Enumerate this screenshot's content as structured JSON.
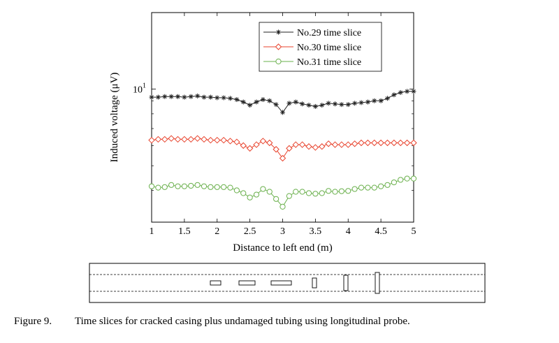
{
  "chart_data": {
    "type": "line",
    "xlabel": "Distance to left end (m)",
    "ylabel": "Induced voltage (μV)",
    "yscale": "log",
    "xlim": [
      1,
      5
    ],
    "ylim": [
      3,
      20
    ],
    "xticks": [
      "1",
      "1.5",
      "2",
      "2.5",
      "3",
      "3.5",
      "4",
      "4.5",
      "5"
    ],
    "yticks": [
      {
        "value": 10,
        "label_base": "10",
        "label_exp": "1"
      }
    ],
    "legend_position": "top-right",
    "x": [
      1.0,
      1.1,
      1.2,
      1.3,
      1.4,
      1.5,
      1.6,
      1.7,
      1.8,
      1.9,
      2.0,
      2.1,
      2.2,
      2.3,
      2.4,
      2.5,
      2.6,
      2.7,
      2.8,
      2.9,
      3.0,
      3.1,
      3.2,
      3.3,
      3.4,
      3.5,
      3.6,
      3.7,
      3.8,
      3.9,
      4.0,
      4.1,
      4.2,
      4.3,
      4.4,
      4.5,
      4.6,
      4.7,
      4.8,
      4.9,
      5.0
    ],
    "series": [
      {
        "name": "No.29 time slice",
        "color": "#222222",
        "marker": "star",
        "values": [
          9.3,
          9.3,
          9.35,
          9.35,
          9.35,
          9.3,
          9.35,
          9.4,
          9.3,
          9.3,
          9.25,
          9.25,
          9.2,
          9.1,
          8.9,
          8.65,
          8.9,
          9.1,
          9.0,
          8.7,
          8.1,
          8.8,
          8.9,
          8.75,
          8.65,
          8.55,
          8.65,
          8.8,
          8.75,
          8.7,
          8.7,
          8.8,
          8.85,
          8.9,
          9.0,
          9.0,
          9.2,
          9.5,
          9.7,
          9.8,
          9.8
        ]
      },
      {
        "name": "No.30 time slice",
        "color": "#e8432d",
        "marker": "diamond",
        "values": [
          6.3,
          6.35,
          6.35,
          6.4,
          6.35,
          6.35,
          6.35,
          6.4,
          6.35,
          6.3,
          6.3,
          6.3,
          6.25,
          6.2,
          6.0,
          5.85,
          6.05,
          6.25,
          6.15,
          5.8,
          5.35,
          5.85,
          6.05,
          6.05,
          5.95,
          5.9,
          5.95,
          6.1,
          6.05,
          6.05,
          6.05,
          6.1,
          6.15,
          6.15,
          6.15,
          6.15,
          6.15,
          6.15,
          6.15,
          6.15,
          6.15
        ]
      },
      {
        "name": "No.31 time slice",
        "color": "#6ab04c",
        "marker": "circle",
        "values": [
          4.15,
          4.1,
          4.12,
          4.2,
          4.15,
          4.15,
          4.17,
          4.2,
          4.15,
          4.12,
          4.12,
          4.12,
          4.1,
          4.0,
          3.9,
          3.75,
          3.85,
          4.05,
          3.95,
          3.7,
          3.45,
          3.8,
          3.95,
          3.95,
          3.9,
          3.88,
          3.9,
          3.98,
          3.95,
          3.97,
          3.98,
          4.05,
          4.1,
          4.1,
          4.1,
          4.15,
          4.2,
          4.3,
          4.4,
          4.45,
          4.45
        ]
      }
    ]
  },
  "caption": {
    "label": "Figure 9.",
    "text": "Time slices for cracked casing plus undamaged tubing using longitudinal probe."
  }
}
